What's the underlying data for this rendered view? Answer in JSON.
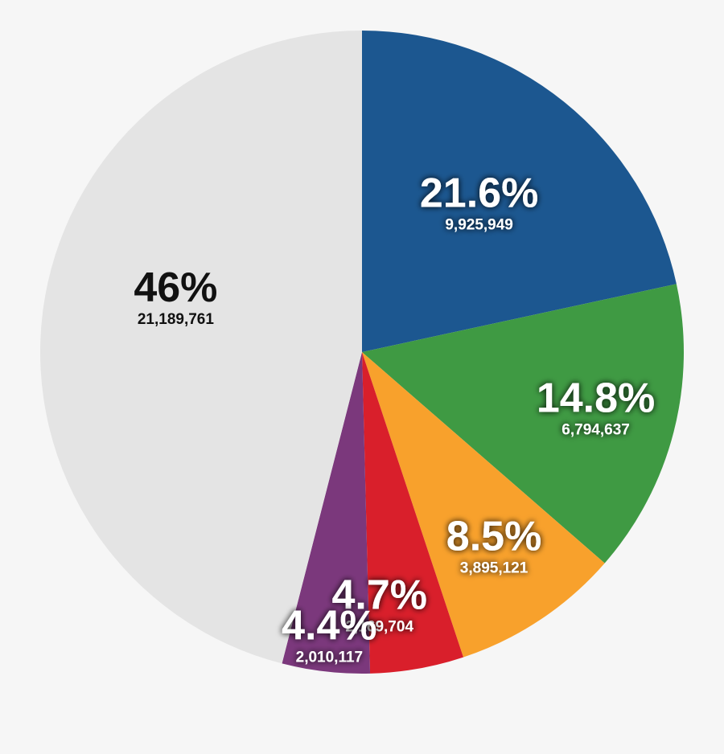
{
  "chart_data": {
    "type": "pie",
    "title": "",
    "slices": [
      {
        "percent_label": "21.6%",
        "count_label": "9,925,949",
        "value": 9925949,
        "percent": 21.6,
        "color": "#1c5790"
      },
      {
        "percent_label": "14.8%",
        "count_label": "6,794,637",
        "value": 6794637,
        "percent": 14.8,
        "color": "#3f9a43"
      },
      {
        "percent_label": "8.5%",
        "count_label": "3,895,121",
        "value": 3895121,
        "percent": 8.5,
        "color": "#f8a12c"
      },
      {
        "percent_label": "4.7%",
        "count_label": "2,169,704",
        "value": 2169704,
        "percent": 4.7,
        "color": "#d91f2b"
      },
      {
        "percent_label": "4.4%",
        "count_label": "2,010,117",
        "value": 2010117,
        "percent": 4.4,
        "color": "#7b387c"
      },
      {
        "percent_label": "46%",
        "count_label": "21,189,761",
        "value": 21189761,
        "percent": 46,
        "color": "#e4e4e4"
      }
    ],
    "start_angle_deg": 0,
    "direction": "clockwise"
  }
}
